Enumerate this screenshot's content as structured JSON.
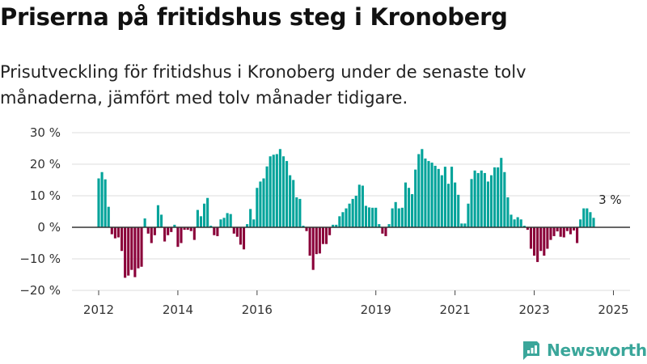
{
  "title": "Priserna på fritidshus steg i Kronoberg",
  "subtitle": "Prisutveckling för fritidshus i Kronoberg under de senaste tolv månaderna, jämfört med tolv månader tidigare.",
  "brand": {
    "name": "Newsworthy"
  },
  "colors": {
    "positive": "#00a39a",
    "negative": "#8a0039",
    "grid": "#dddddd",
    "zero_line": "#333333",
    "brand": "#3aa69a"
  },
  "chart_data": {
    "type": "bar",
    "x_unit": "month",
    "x_start": "2012-01",
    "xtick_labels": [
      "2012",
      "2014",
      "2016",
      "2019",
      "2021",
      "2023",
      "2025"
    ],
    "ytick_labels": [
      "30 %",
      "20 %",
      "10 %",
      "0 %",
      "−10 %",
      "−20 %"
    ],
    "ylim": [
      -20,
      30
    ],
    "grid": true,
    "annotation": {
      "text": "3 %",
      "x": "2024-12"
    },
    "values": [
      15.5,
      17.5,
      15.2,
      6.5,
      -2.2,
      -3.5,
      -3.2,
      -7.5,
      -16,
      -15.3,
      -13.5,
      -15.8,
      -13,
      -12.5,
      2.8,
      -2,
      -5,
      -2.5,
      7,
      4,
      -4.5,
      -2.5,
      -1.5,
      0.8,
      -6.2,
      -5,
      -0.8,
      -0.8,
      -1.2,
      -4,
      5.5,
      3.5,
      7.5,
      9.3,
      0.5,
      -2.5,
      -2.8,
      2.5,
      3,
      4.5,
      4.2,
      -2,
      -3,
      -5.5,
      -7,
      1,
      5.8,
      2.5,
      12.5,
      14.5,
      15.5,
      19.3,
      22.5,
      23,
      23.2,
      24.8,
      22.5,
      21,
      16.5,
      15,
      9.5,
      9,
      0.5,
      -1.2,
      -9,
      -13.5,
      -8.5,
      -8.3,
      -5.3,
      -5.3,
      -2.5,
      0.8,
      0.8,
      3.5,
      4.8,
      6,
      7.5,
      9,
      10,
      13.5,
      13.2,
      6.8,
      6.3,
      6.2,
      6.2,
      1,
      -2,
      -2.8,
      1,
      6,
      8,
      6,
      6.2,
      14.2,
      12.5,
      10.5,
      18.3,
      23.2,
      24.8,
      21.8,
      21,
      20.5,
      19.5,
      18.5,
      16.5,
      19.2,
      13.8,
      19.2,
      14.2,
      10.3,
      1.2,
      1.2,
      7.5,
      15.3,
      18,
      17.2,
      18,
      17.2,
      14.5,
      16.5,
      19,
      19,
      22,
      17.5,
      9.5,
      4,
      2.5,
      3.2,
      2.5,
      0.5,
      -0.8,
      -6.8,
      -9,
      -11,
      -7.5,
      -9,
      -6.8,
      -4,
      -2.8,
      -1.3,
      -3,
      -3.2,
      -1.2,
      -2.2,
      -1,
      -5,
      2.5,
      6,
      6,
      4.8,
      3
    ]
  }
}
